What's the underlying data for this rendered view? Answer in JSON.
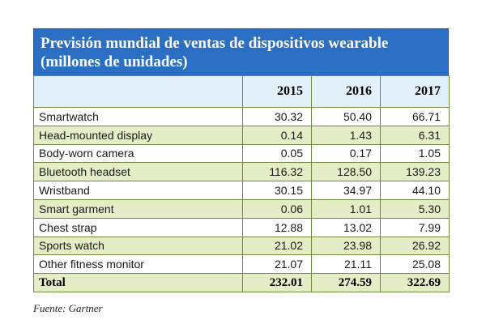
{
  "title": "Previsión mundial de ventas de dispositivos wearable (millones de unidades)",
  "years": [
    "2015",
    "2016",
    "2017"
  ],
  "rows": [
    {
      "label": "Smartwatch",
      "values": [
        "30.32",
        "50.40",
        "66.71"
      ]
    },
    {
      "label": "Head-mounted display",
      "values": [
        "0.14",
        "1.43",
        "6.31"
      ]
    },
    {
      "label": "Body-worn camera",
      "values": [
        "0.05",
        "0.17",
        "1.05"
      ]
    },
    {
      "label": "Bluetooth headset",
      "values": [
        "116.32",
        "128.50",
        "139.23"
      ]
    },
    {
      "label": "Wristband",
      "values": [
        "30.15",
        "34.97",
        "44.10"
      ]
    },
    {
      "label": "Smart garment",
      "values": [
        "0.06",
        "1.01",
        "5.30"
      ]
    },
    {
      "label": "Chest strap",
      "values": [
        "12.88",
        "13.02",
        "7.99"
      ]
    },
    {
      "label": "Sports watch",
      "values": [
        "21.02",
        "23.98",
        "26.92"
      ]
    },
    {
      "label": "Other fitness monitor",
      "values": [
        "21.07",
        "21.11",
        "25.08"
      ]
    }
  ],
  "total": {
    "label": "Total",
    "values": [
      "232.01",
      "274.59",
      "322.69"
    ]
  },
  "source": "Fuente: Gartner",
  "colors": {
    "header": "#2a6fc4",
    "band": "#e4edc6",
    "year_header": "#e2f0fa",
    "border": "#6f8a3c"
  }
}
